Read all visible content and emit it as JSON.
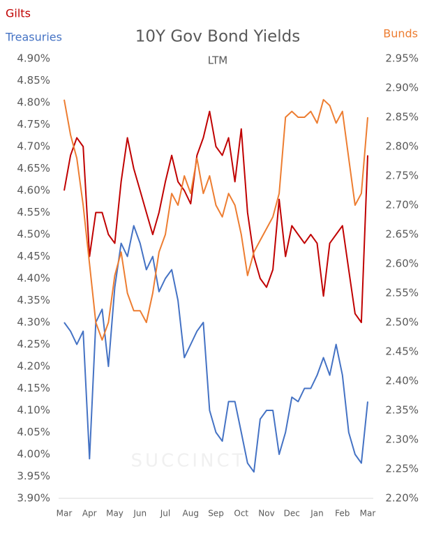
{
  "chart_data": {
    "type": "line",
    "title": "10Y Gov Bond Yields",
    "subtitle": "LTM",
    "watermark": "SUCCINCT",
    "x": [
      0,
      1,
      2,
      3,
      4,
      5,
      6,
      7,
      8,
      9,
      10,
      11,
      12,
      13,
      14,
      15,
      16,
      17,
      18,
      19,
      20,
      21,
      22,
      23,
      24,
      25,
      26,
      27,
      28,
      29,
      30,
      31,
      32,
      33,
      34,
      35,
      36,
      37,
      38,
      39,
      40,
      41,
      42,
      43,
      44,
      45,
      46,
      47,
      48
    ],
    "xlim": [
      0,
      48
    ],
    "xticks": [
      {
        "value": 0,
        "label": "Mar"
      },
      {
        "value": 4,
        "label": "Apr"
      },
      {
        "value": 8,
        "label": "May"
      },
      {
        "value": 12,
        "label": "Jun"
      },
      {
        "value": 16,
        "label": "Jul"
      },
      {
        "value": 20,
        "label": "Aug"
      },
      {
        "value": 24,
        "label": "Sep"
      },
      {
        "value": 28,
        "label": "Oct"
      },
      {
        "value": 32,
        "label": "Nov"
      },
      {
        "value": 36,
        "label": "Dec"
      },
      {
        "value": 40,
        "label": "Jan"
      },
      {
        "value": 44,
        "label": "Feb"
      },
      {
        "value": 48,
        "label": "Mar"
      }
    ],
    "ylim": [
      3.9,
      4.9
    ],
    "yticks": [
      {
        "value": 4.9,
        "label": "4.90%"
      },
      {
        "value": 4.85,
        "label": "4.85%"
      },
      {
        "value": 4.8,
        "label": "4.80%"
      },
      {
        "value": 4.75,
        "label": "4.75%"
      },
      {
        "value": 4.7,
        "label": "4.70%"
      },
      {
        "value": 4.65,
        "label": "4.65%"
      },
      {
        "value": 4.6,
        "label": "4.60%"
      },
      {
        "value": 4.55,
        "label": "4.55%"
      },
      {
        "value": 4.5,
        "label": "4.50%"
      },
      {
        "value": 4.45,
        "label": "4.45%"
      },
      {
        "value": 4.4,
        "label": "4.40%"
      },
      {
        "value": 4.35,
        "label": "4.35%"
      },
      {
        "value": 4.3,
        "label": "4.30%"
      },
      {
        "value": 4.25,
        "label": "4.25%"
      },
      {
        "value": 4.2,
        "label": "4.20%"
      },
      {
        "value": 4.15,
        "label": "4.15%"
      },
      {
        "value": 4.1,
        "label": "4.10%"
      },
      {
        "value": 4.05,
        "label": "4.05%"
      },
      {
        "value": 4.0,
        "label": "4.00%"
      },
      {
        "value": 3.95,
        "label": "3.95%"
      },
      {
        "value": 3.9,
        "label": "3.90%"
      }
    ],
    "y2lim": [
      2.2,
      2.95
    ],
    "y2ticks": [
      {
        "value": 2.95,
        "label": "2.95%"
      },
      {
        "value": 2.9,
        "label": "2.90%"
      },
      {
        "value": 2.85,
        "label": "2.85%"
      },
      {
        "value": 2.8,
        "label": "2.80%"
      },
      {
        "value": 2.75,
        "label": "2.75%"
      },
      {
        "value": 2.7,
        "label": "2.70%"
      },
      {
        "value": 2.65,
        "label": "2.65%"
      },
      {
        "value": 2.6,
        "label": "2.60%"
      },
      {
        "value": 2.55,
        "label": "2.55%"
      },
      {
        "value": 2.5,
        "label": "2.50%"
      },
      {
        "value": 2.45,
        "label": "2.45%"
      },
      {
        "value": 2.4,
        "label": "2.40%"
      },
      {
        "value": 2.35,
        "label": "2.35%"
      },
      {
        "value": 2.3,
        "label": "2.30%"
      },
      {
        "value": 2.25,
        "label": "2.25%"
      },
      {
        "value": 2.2,
        "label": "2.20%"
      }
    ],
    "grid": false,
    "series": [
      {
        "name": "Gilts",
        "color": "#c00000",
        "axis": "y",
        "values": [
          4.6,
          4.68,
          4.72,
          4.7,
          4.45,
          4.55,
          4.55,
          4.5,
          4.48,
          4.62,
          4.72,
          4.65,
          4.6,
          4.55,
          4.5,
          4.55,
          4.62,
          4.68,
          4.62,
          4.6,
          4.57,
          4.68,
          4.72,
          4.78,
          4.7,
          4.68,
          4.72,
          4.62,
          4.74,
          4.55,
          4.45,
          4.4,
          4.38,
          4.42,
          4.58,
          4.45,
          4.52,
          4.5,
          4.48,
          4.5,
          4.48,
          4.36,
          4.48,
          4.5,
          4.52,
          4.42,
          4.32,
          4.3,
          4.68
        ]
      },
      {
        "name": "Treasuries",
        "color": "#4472c4",
        "axis": "y",
        "values": [
          4.3,
          4.28,
          4.25,
          4.28,
          3.99,
          4.3,
          4.33,
          4.2,
          4.38,
          4.48,
          4.45,
          4.52,
          4.48,
          4.42,
          4.45,
          4.37,
          4.4,
          4.42,
          4.35,
          4.22,
          4.25,
          4.28,
          4.3,
          4.1,
          4.05,
          4.03,
          4.12,
          4.12,
          4.05,
          3.98,
          3.96,
          4.08,
          4.1,
          4.1,
          4.0,
          4.05,
          4.13,
          4.12,
          4.15,
          4.15,
          4.18,
          4.22,
          4.18,
          4.25,
          4.18,
          4.05,
          4.0,
          3.98,
          4.12
        ]
      },
      {
        "name": "Bunds",
        "color": "#ed7d31",
        "axis": "y2",
        "values": [
          2.88,
          2.82,
          2.78,
          2.7,
          2.6,
          2.5,
          2.47,
          2.5,
          2.58,
          2.62,
          2.55,
          2.52,
          2.52,
          2.5,
          2.55,
          2.62,
          2.65,
          2.72,
          2.7,
          2.75,
          2.72,
          2.78,
          2.72,
          2.75,
          2.7,
          2.68,
          2.72,
          2.7,
          2.65,
          2.58,
          2.62,
          2.64,
          2.66,
          2.68,
          2.72,
          2.85,
          2.86,
          2.85,
          2.85,
          2.86,
          2.84,
          2.88,
          2.87,
          2.84,
          2.86,
          2.78,
          2.7,
          2.72,
          2.85
        ]
      }
    ]
  }
}
